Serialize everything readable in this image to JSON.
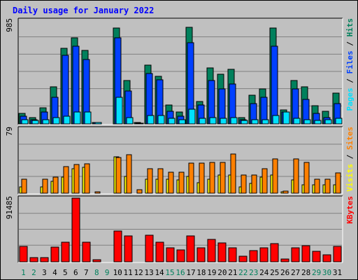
{
  "chart_data": {
    "type": "bar",
    "title": "Daily usage for January 2022",
    "categories": [
      "1",
      "2",
      "3",
      "4",
      "5",
      "6",
      "7",
      "8",
      "9",
      "10",
      "11",
      "12",
      "13",
      "14",
      "15",
      "16",
      "17",
      "18",
      "19",
      "20",
      "21",
      "22",
      "23",
      "24",
      "25",
      "26",
      "27",
      "28",
      "29",
      "30",
      "31"
    ],
    "weekend_days": [
      "1",
      "2",
      "8",
      "9",
      "15",
      "16",
      "22",
      "23",
      "29",
      "30"
    ],
    "colors": {
      "hits": "#00805c",
      "files": "#0040ff",
      "pages": "#00e0ff",
      "visits": "#ffff00",
      "sites": "#ff8000",
      "kbytes": "#ff0000",
      "weekday": "#000000",
      "weekend": "#00805c",
      "title": "#0000ff"
    },
    "panels": [
      {
        "name": "hits-files-pages",
        "max_label": "985",
        "ymax": 985,
        "legend": [
          {
            "text": "Hits",
            "color": "#00805c"
          },
          {
            "text": "Files",
            "color": "#0040ff"
          },
          {
            "text": "Pages",
            "color": "#00e0ff"
          }
        ],
        "series": [
          {
            "name": "Hits",
            "color": "#00805c",
            "values": [
              100,
              60,
              150,
              350,
              720,
              820,
              700,
              15,
              0,
              910,
              410,
              15,
              560,
              450,
              180,
              110,
              920,
              210,
              530,
              470,
              520,
              60,
              270,
              330,
              910,
              130,
              410,
              350,
              170,
              120,
              290
            ]
          },
          {
            "name": "Files",
            "color": "#0040ff",
            "values": [
              70,
              40,
              110,
              250,
              650,
              740,
              610,
              10,
              0,
              820,
              310,
              8,
              480,
              420,
              120,
              70,
              770,
              180,
              410,
              330,
              380,
              40,
              190,
              250,
              740,
              110,
              330,
              230,
              100,
              60,
              190
            ]
          },
          {
            "name": "Pages",
            "color": "#00e0ff",
            "values": [
              40,
              30,
              40,
              60,
              70,
              110,
              110,
              10,
              0,
              250,
              60,
              8,
              80,
              80,
              50,
              40,
              140,
              50,
              60,
              50,
              60,
              30,
              40,
              40,
              80,
              110,
              50,
              40,
              30,
              40,
              50
            ]
          }
        ]
      },
      {
        "name": "visits-sites",
        "max_label": "79",
        "ymax": 79,
        "legend": [
          {
            "text": "Sites",
            "color": "#ff8000"
          },
          {
            "text": "Visits",
            "color": "#ffff00"
          }
        ],
        "series": [
          {
            "name": "Visits",
            "color": "#ffff00",
            "values": [
              8,
              0,
              8,
              15,
              20,
              30,
              32,
              0,
              0,
              45,
              21,
              0,
              17,
              17,
              17,
              16,
              21,
              13,
              17,
              22,
              22,
              8,
              12,
              20,
              22,
              2,
              16,
              10,
              10,
              10,
              10
            ]
          },
          {
            "name": "Sites",
            "color": "#ff8000",
            "values": [
              17,
              0,
              17,
              20,
              33,
              35,
              36,
              2,
              0,
              44,
              47,
              4,
              30,
              30,
              26,
              26,
              37,
              37,
              38,
              38,
              48,
              22,
              22,
              30,
              42,
              3,
              42,
              38,
              17,
              17,
              25
            ]
          }
        ]
      },
      {
        "name": "kbytes",
        "max_label": "91485",
        "ymax": 91485,
        "legend": [
          {
            "text": "KBytes",
            "color": "#ff0000"
          }
        ],
        "series": [
          {
            "name": "KBytes",
            "color": "#ff0000",
            "values": [
              22000,
              6000,
              6000,
              21000,
              28000,
              91485,
              28000,
              3000,
              0,
              44000,
              37000,
              0,
              38000,
              28000,
              20000,
              17000,
              37000,
              20000,
              32000,
              27000,
              20000,
              8000,
              16000,
              20000,
              26000,
              4000,
              20000,
              23000,
              15000,
              10000,
              22000
            ]
          }
        ]
      }
    ]
  }
}
